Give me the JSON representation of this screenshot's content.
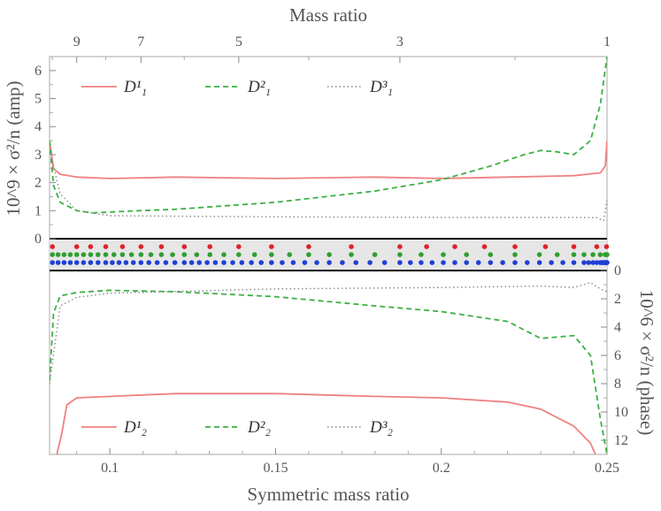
{
  "chart_data": {
    "type": "line",
    "top_title": "Mass ratio",
    "bottom_title": "Symmetric mass ratio",
    "left_ylabel": "10^9 × σ²/n (amp)",
    "right_ylabel": "10^6 × σ²/n (phase)",
    "top_ticks": [
      {
        "label": "9",
        "q": 9
      },
      {
        "label": "7",
        "q": 7
      },
      {
        "label": "5",
        "q": 5
      },
      {
        "label": "3",
        "q": 3
      },
      {
        "label": "1",
        "q": 1
      }
    ],
    "x_ticks": [
      {
        "label": "0.1",
        "value": 0.1
      },
      {
        "label": "0.15",
        "value": 0.15
      },
      {
        "label": "0.2",
        "value": 0.2
      },
      {
        "label": "0.25",
        "value": 0.25
      }
    ],
    "xlim": [
      0.0818,
      0.25
    ],
    "amp_panel": {
      "ylim": [
        0,
        6.5
      ],
      "y_ticks": [
        "0",
        "1",
        "2",
        "3",
        "4",
        "5",
        "6"
      ],
      "legend": [
        "D¹₁",
        "D²₁",
        "D³₁"
      ],
      "series": [
        {
          "name": "D¹₁",
          "color": "#f08080",
          "style": "solid",
          "x": [
            0.0818,
            0.083,
            0.085,
            0.09,
            0.1,
            0.12,
            0.15,
            0.18,
            0.2,
            0.22,
            0.24,
            0.248,
            0.2495,
            0.25
          ],
          "y": [
            3.5,
            2.5,
            2.3,
            2.2,
            2.15,
            2.2,
            2.15,
            2.2,
            2.15,
            2.2,
            2.25,
            2.35,
            2.6,
            3.5
          ]
        },
        {
          "name": "D²₁",
          "color": "#3cb043",
          "style": "dashed",
          "x": [
            0.0818,
            0.083,
            0.085,
            0.09,
            0.095,
            0.105,
            0.12,
            0.15,
            0.18,
            0.2,
            0.215,
            0.225,
            0.23,
            0.235,
            0.24,
            0.245,
            0.248,
            0.25
          ],
          "y": [
            3.5,
            1.9,
            1.3,
            1.0,
            0.92,
            0.98,
            1.05,
            1.3,
            1.7,
            2.1,
            2.6,
            3.0,
            3.15,
            3.1,
            3.0,
            3.5,
            4.8,
            6.5
          ]
        },
        {
          "name": "D³₁",
          "color": "#888888",
          "style": "dotted",
          "x": [
            0.0818,
            0.085,
            0.09,
            0.1,
            0.15,
            0.2,
            0.24,
            0.247,
            0.249,
            0.25
          ],
          "y": [
            3.2,
            1.6,
            1.0,
            0.82,
            0.78,
            0.76,
            0.76,
            0.75,
            0.65,
            1.4
          ]
        }
      ]
    },
    "phase_panel": {
      "ylim": [
        0,
        13
      ],
      "y_ticks": [
        "0",
        "2",
        "4",
        "6",
        "8",
        "10",
        "12"
      ],
      "legend": [
        "D¹₂",
        "D²₂",
        "D³₂"
      ],
      "series": [
        {
          "name": "D¹₂",
          "color": "#f08080",
          "style": "solid",
          "x": [
            0.084,
            0.0855,
            0.087,
            0.09,
            0.1,
            0.12,
            0.15,
            0.18,
            0.2,
            0.22,
            0.23,
            0.24,
            0.245,
            0.2465
          ],
          "y": [
            13,
            11.5,
            9.5,
            9.0,
            8.9,
            8.7,
            8.7,
            8.9,
            9.0,
            9.3,
            9.8,
            11.0,
            12.2,
            13
          ]
        },
        {
          "name": "D²₂",
          "color": "#3cb043",
          "style": "dashed",
          "x": [
            0.0818,
            0.083,
            0.085,
            0.09,
            0.1,
            0.12,
            0.15,
            0.18,
            0.2,
            0.22,
            0.23,
            0.24,
            0.245,
            0.248,
            0.25
          ],
          "y": [
            7.8,
            3.0,
            1.8,
            1.55,
            1.4,
            1.5,
            1.85,
            2.5,
            2.9,
            3.6,
            4.8,
            4.6,
            6.0,
            10.5,
            13
          ]
        },
        {
          "name": "D³₂",
          "color": "#888888",
          "style": "dotted",
          "x": [
            0.0818,
            0.085,
            0.09,
            0.1,
            0.15,
            0.2,
            0.23,
            0.24,
            0.245,
            0.248,
            0.25
          ],
          "y": [
            8.0,
            2.5,
            1.9,
            1.6,
            1.3,
            1.2,
            1.1,
            1.2,
            0.85,
            1.3,
            1.5
          ]
        }
      ]
    },
    "dot_rows": [
      {
        "color": "#e0212b",
        "q": [
          1.05,
          1.25,
          1.5,
          1.75,
          2,
          2.25,
          2.5,
          2.75,
          3,
          3.5,
          4,
          4.5,
          5,
          5.5,
          6,
          6.5,
          7,
          7.5,
          8,
          8.5,
          9,
          10
        ]
      },
      {
        "color": "#2f9e2f",
        "q": [
          1,
          1.05,
          1.1,
          1.2,
          1.3,
          1.4,
          1.5,
          1.65,
          1.8,
          2,
          2.2,
          2.4,
          2.6,
          2.8,
          3,
          3.25,
          3.5,
          3.75,
          4,
          4.25,
          4.5,
          4.75,
          5,
          5.25,
          5.5,
          5.75,
          6,
          6.25,
          6.5,
          6.75,
          7,
          7.25,
          7.5,
          7.75,
          8,
          8.25,
          8.5,
          8.75,
          9,
          9.25,
          9.5,
          9.75,
          10
        ]
      },
      {
        "color": "#1f3fd6",
        "q": [
          1,
          1.02,
          1.04,
          1.06,
          1.08,
          1.1,
          1.12,
          1.14,
          1.16,
          1.18,
          1.2,
          1.25,
          1.3,
          1.35,
          1.4,
          1.5,
          1.6,
          1.7,
          1.8,
          1.9,
          2,
          2.1,
          2.2,
          2.3,
          2.4,
          2.5,
          2.6,
          2.7,
          2.8,
          2.9,
          3,
          3.15,
          3.3,
          3.45,
          3.6,
          3.75,
          3.9,
          4.05,
          4.2,
          4.35,
          4.5,
          4.65,
          4.8,
          4.95,
          5.1,
          5.25,
          5.4,
          5.55,
          5.7,
          5.85,
          6,
          6.2,
          6.4,
          6.6,
          6.8,
          7,
          7.2,
          7.4,
          7.6,
          7.8,
          8,
          8.25,
          8.5,
          8.75,
          9,
          9.25,
          9.5,
          9.75,
          10
        ]
      }
    ]
  }
}
